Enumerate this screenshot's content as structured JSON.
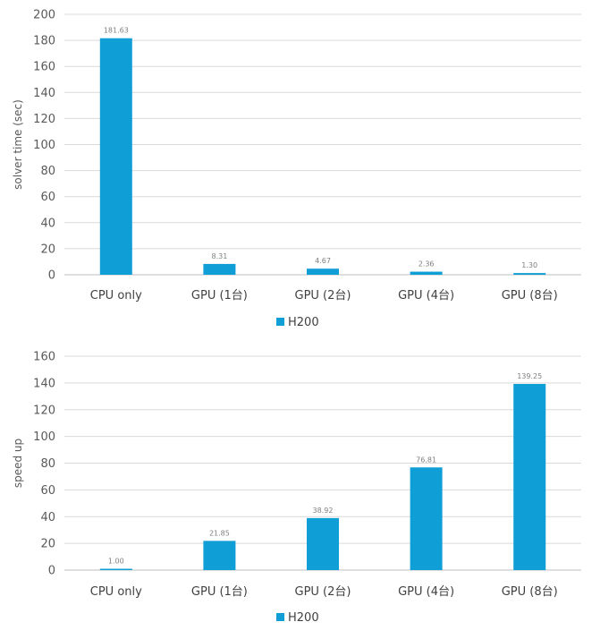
{
  "colors": {
    "bar": "#0f9ed5",
    "grid": "#d9d9d9",
    "axis": "#bfbfbf"
  },
  "chart_data": [
    {
      "type": "bar",
      "title": "",
      "xlabel": "",
      "ylabel": "solver time (sec)",
      "ylim": [
        0,
        200
      ],
      "yticks": [
        0,
        20,
        40,
        60,
        80,
        100,
        120,
        140,
        160,
        180,
        200
      ],
      "categories": [
        "CPU only",
        "GPU (1台)",
        "GPU (2台)",
        "GPU (4台)",
        "GPU (8台)"
      ],
      "series": [
        {
          "name": "H200",
          "values": [
            181.63,
            8.31,
            4.67,
            2.36,
            1.3
          ],
          "labels": [
            "181.63",
            "8.31",
            "4.67",
            "2.36",
            "1.30"
          ]
        }
      ],
      "grid": true,
      "legend": "bottom"
    },
    {
      "type": "bar",
      "title": "",
      "xlabel": "",
      "ylabel": "speed up",
      "ylim": [
        0,
        160
      ],
      "yticks": [
        0,
        20,
        40,
        60,
        80,
        100,
        120,
        140,
        160
      ],
      "categories": [
        "CPU only",
        "GPU (1台)",
        "GPU (2台)",
        "GPU (4台)",
        "GPU (8台)"
      ],
      "series": [
        {
          "name": "H200",
          "values": [
            1.0,
            21.85,
            38.92,
            76.81,
            139.25
          ],
          "labels": [
            "1.00",
            "21.85",
            "38.92",
            "76.81",
            "139.25"
          ]
        }
      ],
      "grid": true,
      "legend": "bottom"
    }
  ]
}
